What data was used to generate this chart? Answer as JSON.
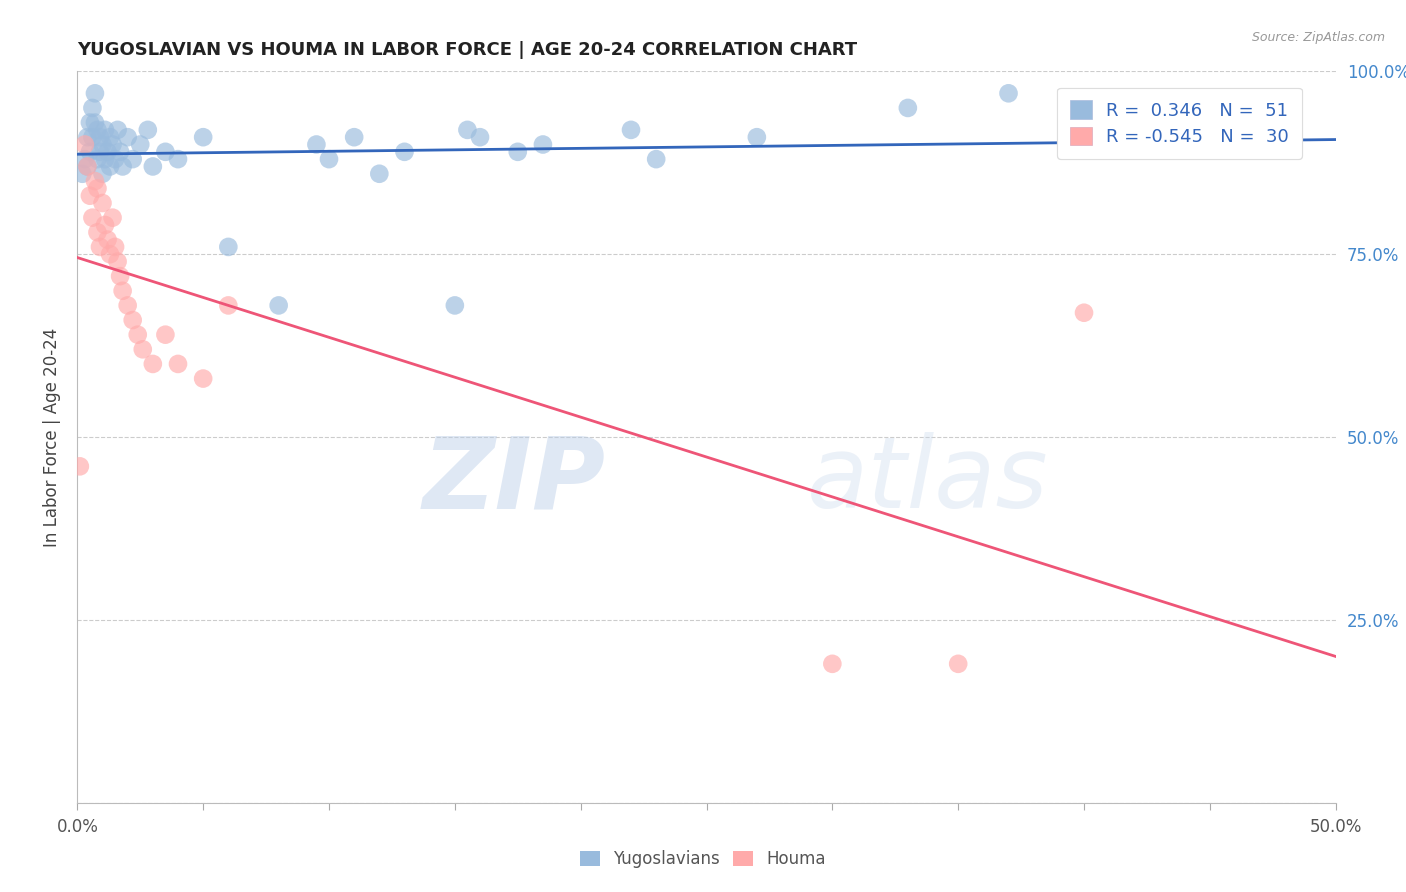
{
  "title": "YUGOSLAVIAN VS HOUMA IN LABOR FORCE | AGE 20-24 CORRELATION CHART",
  "source": "Source: ZipAtlas.com",
  "ylabel": "In Labor Force | Age 20-24",
  "xlim": [
    0.0,
    0.5
  ],
  "ylim": [
    0.0,
    1.0
  ],
  "xticks": [
    0.0,
    0.05,
    0.1,
    0.15,
    0.2,
    0.25,
    0.3,
    0.35,
    0.4,
    0.45,
    0.5
  ],
  "xticklabels_sparse": {
    "0": "0.0%",
    "10": "50.0%"
  },
  "yticks": [
    0.0,
    0.25,
    0.5,
    0.75,
    1.0
  ],
  "yticklabels_right": [
    "",
    "25.0%",
    "50.0%",
    "75.0%",
    "100.0%"
  ],
  "legend_r_blue": "0.346",
  "legend_n_blue": "51",
  "legend_r_pink": "-0.545",
  "legend_n_pink": "30",
  "blue_color": "#99BBDD",
  "pink_color": "#FFAAAA",
  "line_blue_color": "#3366BB",
  "line_pink_color": "#EE5577",
  "watermark_zip": "ZIP",
  "watermark_atlas": "atlas",
  "blue_x": [
    0.002,
    0.003,
    0.004,
    0.004,
    0.005,
    0.005,
    0.006,
    0.006,
    0.007,
    0.007,
    0.008,
    0.008,
    0.009,
    0.009,
    0.01,
    0.01,
    0.011,
    0.011,
    0.012,
    0.013,
    0.013,
    0.014,
    0.015,
    0.016,
    0.017,
    0.018,
    0.02,
    0.022,
    0.025,
    0.028,
    0.03,
    0.035,
    0.04,
    0.05,
    0.06,
    0.08,
    0.095,
    0.1,
    0.11,
    0.12,
    0.13,
    0.15,
    0.155,
    0.16,
    0.175,
    0.185,
    0.22,
    0.23,
    0.27,
    0.33,
    0.37
  ],
  "blue_y": [
    0.86,
    0.88,
    0.91,
    0.87,
    0.93,
    0.89,
    0.95,
    0.91,
    0.97,
    0.93,
    0.88,
    0.92,
    0.89,
    0.91,
    0.86,
    0.9,
    0.88,
    0.92,
    0.89,
    0.91,
    0.87,
    0.9,
    0.88,
    0.92,
    0.89,
    0.87,
    0.91,
    0.88,
    0.9,
    0.92,
    0.87,
    0.89,
    0.88,
    0.91,
    0.76,
    0.68,
    0.9,
    0.88,
    0.91,
    0.86,
    0.89,
    0.68,
    0.92,
    0.91,
    0.89,
    0.9,
    0.92,
    0.88,
    0.91,
    0.95,
    0.97
  ],
  "pink_x": [
    0.001,
    0.003,
    0.004,
    0.005,
    0.006,
    0.007,
    0.008,
    0.008,
    0.009,
    0.01,
    0.011,
    0.012,
    0.013,
    0.014,
    0.015,
    0.016,
    0.017,
    0.018,
    0.02,
    0.022,
    0.024,
    0.026,
    0.03,
    0.035,
    0.04,
    0.05,
    0.06,
    0.3,
    0.35,
    0.4
  ],
  "pink_y": [
    0.46,
    0.9,
    0.87,
    0.83,
    0.8,
    0.85,
    0.84,
    0.78,
    0.76,
    0.82,
    0.79,
    0.77,
    0.75,
    0.8,
    0.76,
    0.74,
    0.72,
    0.7,
    0.68,
    0.66,
    0.64,
    0.62,
    0.6,
    0.64,
    0.6,
    0.58,
    0.68,
    0.19,
    0.19,
    0.67
  ]
}
